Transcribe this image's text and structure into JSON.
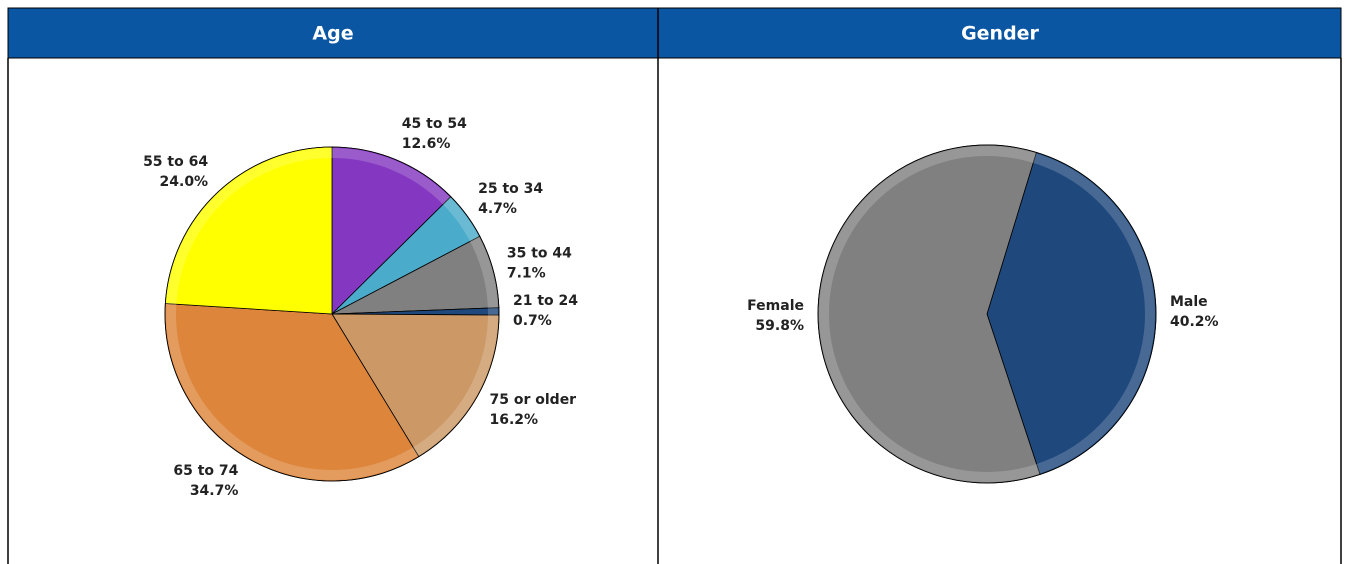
{
  "chart_data": [
    {
      "type": "pie",
      "title": "Age",
      "categories": [
        "45 to 54",
        "25 to 34",
        "35 to 44",
        "21 to 24",
        "75 or older",
        "65 to 74",
        "55 to 64"
      ],
      "values": [
        12.6,
        4.7,
        7.1,
        0.7,
        16.2,
        34.7,
        24.0
      ],
      "value_labels": [
        "12.6%",
        "4.7%",
        "7.1%",
        "0.7%",
        "16.2%",
        "34.7%",
        "24.0%"
      ],
      "colors": [
        "#8437c0",
        "#4babca",
        "#808080",
        "#1f497d",
        "#cc9966",
        "#dd853b",
        "#ffff00"
      ],
      "start_angle": 0
    },
    {
      "type": "pie",
      "title": "Gender",
      "categories": [
        "Male",
        "Female"
      ],
      "values": [
        40.2,
        59.8
      ],
      "value_labels": [
        "40.2%",
        "59.8%"
      ],
      "colors": [
        "#1f497d",
        "#808080"
      ],
      "start_angle": 17
    }
  ]
}
